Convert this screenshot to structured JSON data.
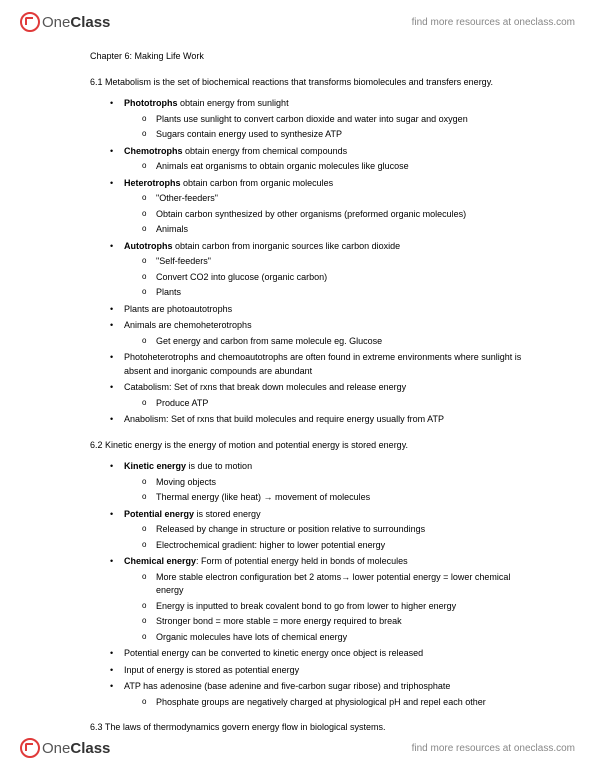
{
  "brand": {
    "part1": "One",
    "part2": "Class"
  },
  "tagline": "find more resources at oneclass.com",
  "title": "Chapter 6: Making Life Work",
  "s61": "6.1 Metabolism is the set of biochemical reactions that transforms biomolecules and transfers energy.",
  "s62": "6.2 Kinetic energy is the energy of motion and potential energy is stored energy.",
  "s63": "6.3 The laws of thermodynamics govern energy flow in biological systems.",
  "t": {
    "photo_b": "Phototrophs",
    "photo_r": " obtain energy from sunlight",
    "photo_1": "Plants use sunlight to convert carbon dioxide and water into sugar and oxygen",
    "photo_2": "Sugars contain energy used to synthesize ATP",
    "chemo_b": "Chemotrophs",
    "chemo_r": " obtain energy from chemical compounds",
    "chemo_1": "Animals eat organisms to obtain organic molecules like glucose",
    "het_b": "Heterotrophs",
    "het_r": " obtain carbon from organic molecules",
    "het_1": "\"Other-feeders\"",
    "het_2": "Obtain carbon synthesized by other organisms (preformed organic molecules)",
    "het_3": "Animals",
    "auto_b": "Autotrophs",
    "auto_r": " obtain carbon from inorganic sources like carbon dioxide",
    "auto_1": "\"Self-feeders\"",
    "auto_2": "Convert CO2 into glucose (organic carbon)",
    "auto_3": "Plants",
    "plants_pa": "Plants are photoautotrophs",
    "animals_ch": "Animals are chemoheterotrophs",
    "animals_ch_1": "Get energy and carbon from same molecule eg. Glucose",
    "phch": "Photoheterotrophs and chemoautotrophs are often found in extreme environments where sunlight is absent and inorganic compounds are abundant",
    "cat": "Catabolism: Set of rxns that break down molecules and release energy",
    "cat_1": "Produce ATP",
    "ana": "Anabolism: Set of rxns that build molecules and require energy usually from ATP",
    "ke_b": "Kinetic energy",
    "ke_r": " is due to motion",
    "ke_1": "Moving objects",
    "ke_2": "Thermal energy (like heat) → movement of molecules",
    "pe_b": "Potential energy",
    "pe_r": " is stored energy",
    "pe_1": "Released by change in structure or position relative to surroundings",
    "pe_2": "Electrochemical gradient: higher to lower potential energy",
    "ce_b": "Chemical energy",
    "ce_r": ": Form of potential energy held in bonds of molecules",
    "ce_1": "More stable electron configuration bet 2 atoms→ lower potential energy = lower chemical energy",
    "ce_2": "Energy is inputted to break covalent bond to go from lower to higher energy",
    "ce_3": "Stronger bond = more stable = more energy required to break",
    "ce_4": "Organic molecules have lots of chemical energy",
    "pe_conv": "Potential energy can be converted to kinetic energy once object is released",
    "input_e": "Input of energy is stored as potential energy",
    "atp": "ATP has adenosine (base adenine and five-carbon sugar ribose) and triphosphate",
    "atp_1": "Phosphate groups are negatively charged at physiological pH and repel each other"
  }
}
